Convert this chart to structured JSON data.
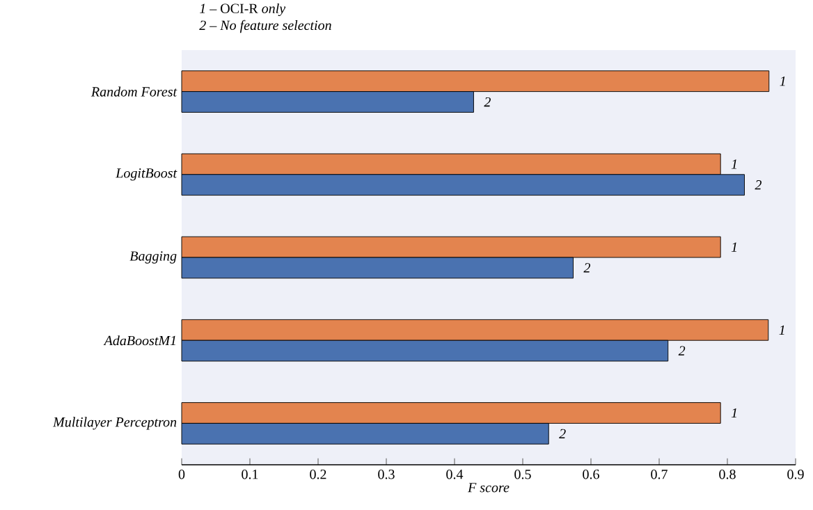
{
  "chart_data": {
    "type": "bar",
    "orientation": "horizontal",
    "xlabel": "F score",
    "categories": [
      "Random Forest",
      "LogitBoost",
      "Bagging",
      "AdaBoostM1",
      "Multilayer Perceptron"
    ],
    "series": [
      {
        "name": "1",
        "color": "#e3844f",
        "values": [
          0.861,
          0.79,
          0.79,
          0.86,
          0.79
        ]
      },
      {
        "name": "2",
        "color": "#4a72b0",
        "values": [
          0.428,
          0.825,
          0.574,
          0.713,
          0.538
        ]
      }
    ],
    "xlim": [
      0,
      0.9
    ],
    "xticks": [
      0,
      0.1,
      0.2,
      0.3,
      0.4,
      0.5,
      0.6,
      0.7,
      0.8,
      0.9
    ],
    "annotations": [
      "*1* – OCI-R *only*",
      "*2 – No feature selection*"
    ]
  }
}
